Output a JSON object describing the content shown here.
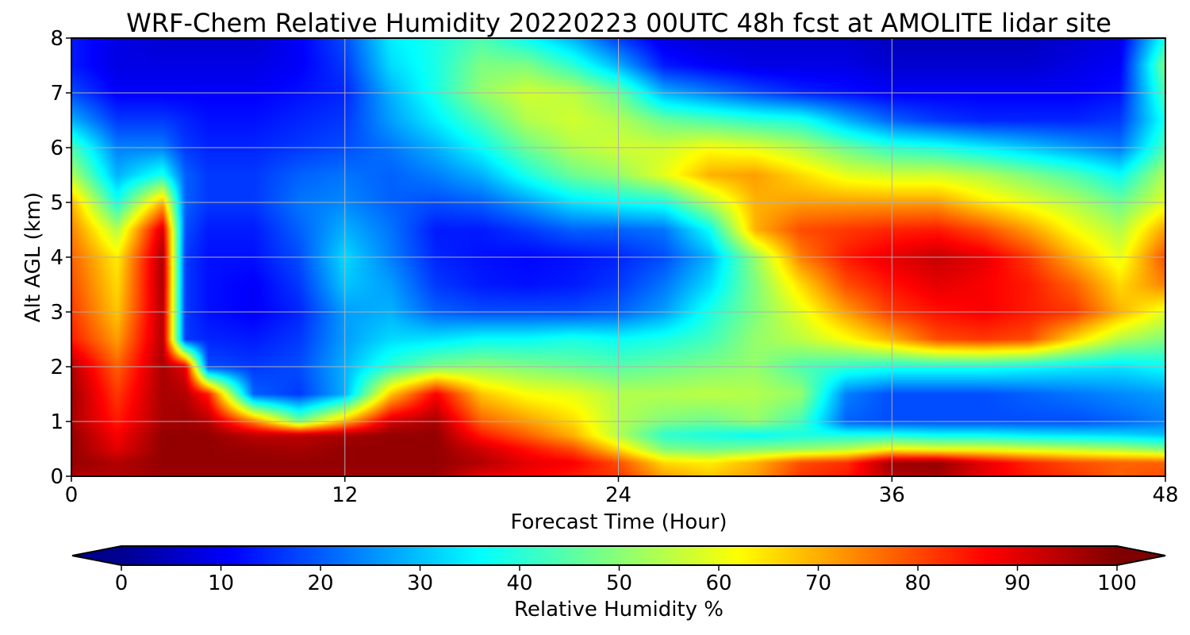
{
  "chart_data": {
    "type": "heatmap",
    "title": "WRF-Chem Relative Humidity 20220223 00UTC 48h fcst at AMOLITE lidar site",
    "xlabel": "Forecast Time (Hour)",
    "ylabel": "Alt AGL (km)",
    "xlim": [
      0,
      48
    ],
    "ylim": [
      0,
      8
    ],
    "xticks": [
      "0",
      "12",
      "24",
      "36",
      "48"
    ],
    "yticks": [
      "0",
      "1",
      "2",
      "3",
      "4",
      "5",
      "6",
      "7",
      "8"
    ],
    "grid": true,
    "colormap": "jet",
    "colorbar": {
      "label": "Relative Humidity %",
      "ticks": [
        "0",
        "10",
        "20",
        "30",
        "40",
        "50",
        "60",
        "70",
        "80",
        "90",
        "100"
      ],
      "range": [
        0,
        100
      ],
      "extend": "both"
    },
    "x": [
      0,
      2,
      4,
      5,
      6,
      8,
      10,
      12,
      14,
      16,
      18,
      20,
      22,
      24,
      26,
      28,
      30,
      32,
      34,
      36,
      38,
      40,
      42,
      44,
      46,
      48
    ],
    "y": [
      0,
      0.25,
      0.5,
      0.75,
      1,
      1.5,
      2,
      2.5,
      3,
      3.5,
      4,
      4.5,
      5,
      5.5,
      6,
      6.5,
      7,
      7.5,
      8
    ],
    "z": [
      [
        95,
        95,
        97,
        97,
        97,
        97,
        97,
        97,
        97,
        97,
        90,
        88,
        85,
        82,
        72,
        68,
        72,
        82,
        85,
        95,
        96,
        90,
        85,
        82,
        78,
        80
      ],
      [
        98,
        95,
        98,
        98,
        98,
        98,
        98,
        98,
        98,
        98,
        95,
        90,
        88,
        80,
        66,
        64,
        70,
        80,
        83,
        97,
        98,
        90,
        84,
        80,
        78,
        78
      ],
      [
        98,
        90,
        98,
        98,
        98,
        97,
        96,
        98,
        98,
        98,
        92,
        86,
        80,
        66,
        50,
        48,
        50,
        52,
        55,
        62,
        60,
        60,
        58,
        56,
        54,
        50
      ],
      [
        98,
        88,
        98,
        98,
        98,
        94,
        94,
        96,
        98,
        98,
        85,
        78,
        70,
        55,
        42,
        40,
        38,
        40,
        40,
        40,
        38,
        38,
        36,
        35,
        34,
        32
      ],
      [
        96,
        85,
        96,
        97,
        95,
        75,
        50,
        70,
        92,
        96,
        78,
        72,
        66,
        55,
        50,
        48,
        52,
        44,
        22,
        20,
        20,
        20,
        20,
        20,
        22,
        25
      ],
      [
        97,
        82,
        96,
        95,
        85,
        22,
        18,
        30,
        68,
        88,
        68,
        62,
        60,
        55,
        55,
        56,
        55,
        52,
        25,
        20,
        20,
        20,
        22,
        24,
        26,
        28
      ],
      [
        95,
        78,
        96,
        90,
        20,
        18,
        20,
        30,
        42,
        50,
        52,
        50,
        48,
        46,
        48,
        50,
        52,
        45,
        42,
        40,
        40,
        40,
        38,
        36,
        35,
        38
      ],
      [
        85,
        72,
        95,
        18,
        16,
        15,
        18,
        28,
        34,
        35,
        38,
        38,
        40,
        38,
        40,
        44,
        52,
        56,
        62,
        70,
        80,
        82,
        80,
        66,
        55,
        50
      ],
      [
        82,
        68,
        95,
        18,
        14,
        12,
        16,
        28,
        30,
        22,
        20,
        20,
        20,
        22,
        28,
        40,
        50,
        60,
        72,
        82,
        86,
        88,
        85,
        82,
        70,
        60
      ],
      [
        80,
        66,
        96,
        18,
        14,
        12,
        18,
        32,
        28,
        18,
        15,
        14,
        15,
        18,
        24,
        34,
        50,
        66,
        80,
        86,
        90,
        88,
        85,
        78,
        66,
        75
      ],
      [
        78,
        64,
        96,
        18,
        14,
        14,
        20,
        34,
        25,
        16,
        14,
        13,
        14,
        16,
        20,
        30,
        52,
        75,
        85,
        90,
        93,
        90,
        82,
        70,
        60,
        80
      ],
      [
        75,
        55,
        92,
        20,
        15,
        15,
        22,
        30,
        24,
        15,
        15,
        18,
        22,
        22,
        24,
        38,
        70,
        80,
        82,
        84,
        85,
        80,
        72,
        62,
        55,
        72
      ],
      [
        70,
        40,
        70,
        22,
        18,
        18,
        24,
        26,
        22,
        20,
        22,
        28,
        35,
        38,
        40,
        55,
        70,
        72,
        72,
        72,
        72,
        65,
        60,
        55,
        48,
        60
      ],
      [
        55,
        30,
        40,
        22,
        18,
        18,
        22,
        24,
        22,
        25,
        30,
        40,
        48,
        52,
        60,
        70,
        72,
        66,
        60,
        58,
        58,
        55,
        50,
        45,
        38,
        55
      ],
      [
        45,
        25,
        25,
        18,
        16,
        16,
        18,
        20,
        24,
        30,
        38,
        48,
        55,
        58,
        58,
        62,
        60,
        55,
        48,
        42,
        40,
        36,
        32,
        28,
        24,
        45
      ],
      [
        30,
        18,
        18,
        16,
        14,
        14,
        16,
        18,
        28,
        36,
        45,
        55,
        58,
        55,
        48,
        45,
        42,
        40,
        30,
        22,
        18,
        16,
        16,
        16,
        18,
        40
      ],
      [
        20,
        12,
        12,
        12,
        12,
        12,
        14,
        16,
        30,
        40,
        52,
        58,
        56,
        48,
        30,
        25,
        20,
        16,
        14,
        12,
        12,
        12,
        12,
        12,
        14,
        45
      ],
      [
        15,
        10,
        10,
        10,
        10,
        10,
        12,
        18,
        34,
        40,
        50,
        50,
        42,
        30,
        15,
        12,
        10,
        10,
        10,
        8,
        8,
        8,
        8,
        10,
        12,
        50
      ],
      [
        15,
        10,
        8,
        8,
        8,
        8,
        12,
        20,
        36,
        40,
        45,
        38,
        30,
        18,
        10,
        8,
        8,
        8,
        8,
        6,
        6,
        6,
        6,
        8,
        10,
        40
      ]
    ]
  }
}
